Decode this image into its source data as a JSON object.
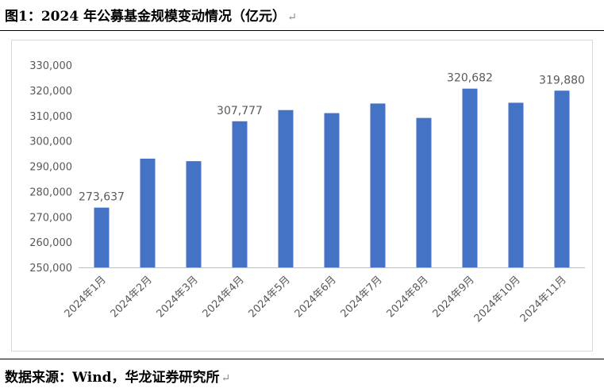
{
  "figure": {
    "title": "图1：2024 年公募基金规模变动情况（亿元）",
    "source": "数据来源：Wind，华龙证券研究所",
    "return_mark": "↵"
  },
  "colors": {
    "bar": "#4472c4",
    "axis_text": "#595959",
    "label_text": "#595959",
    "axis_line": "#bfbfbf"
  },
  "chart_data": {
    "type": "bar",
    "title": "",
    "xlabel": "",
    "ylabel": "",
    "categories": [
      "2024年1月",
      "2024年2月",
      "2024年3月",
      "2024年4月",
      "2024年5月",
      "2024年6月",
      "2024年7月",
      "2024年8月",
      "2024年9月",
      "2024年10月",
      "2024年11月"
    ],
    "values": [
      273637,
      293000,
      292000,
      307777,
      312200,
      311000,
      314800,
      309100,
      320682,
      315100,
      319880
    ],
    "data_labels": [
      {
        "index": 0,
        "text": "273,637"
      },
      {
        "index": 3,
        "text": "307,777"
      },
      {
        "index": 8,
        "text": "320,682"
      },
      {
        "index": 10,
        "text": "319,880"
      }
    ],
    "ylim": [
      250000,
      330000
    ],
    "yticks": [
      250000,
      260000,
      270000,
      280000,
      290000,
      300000,
      310000,
      320000,
      330000
    ],
    "ytick_labels": [
      "250,000",
      "260,000",
      "270,000",
      "280,000",
      "290,000",
      "300,000",
      "310,000",
      "320,000",
      "330,000"
    ],
    "grid": false,
    "legend": "none"
  }
}
